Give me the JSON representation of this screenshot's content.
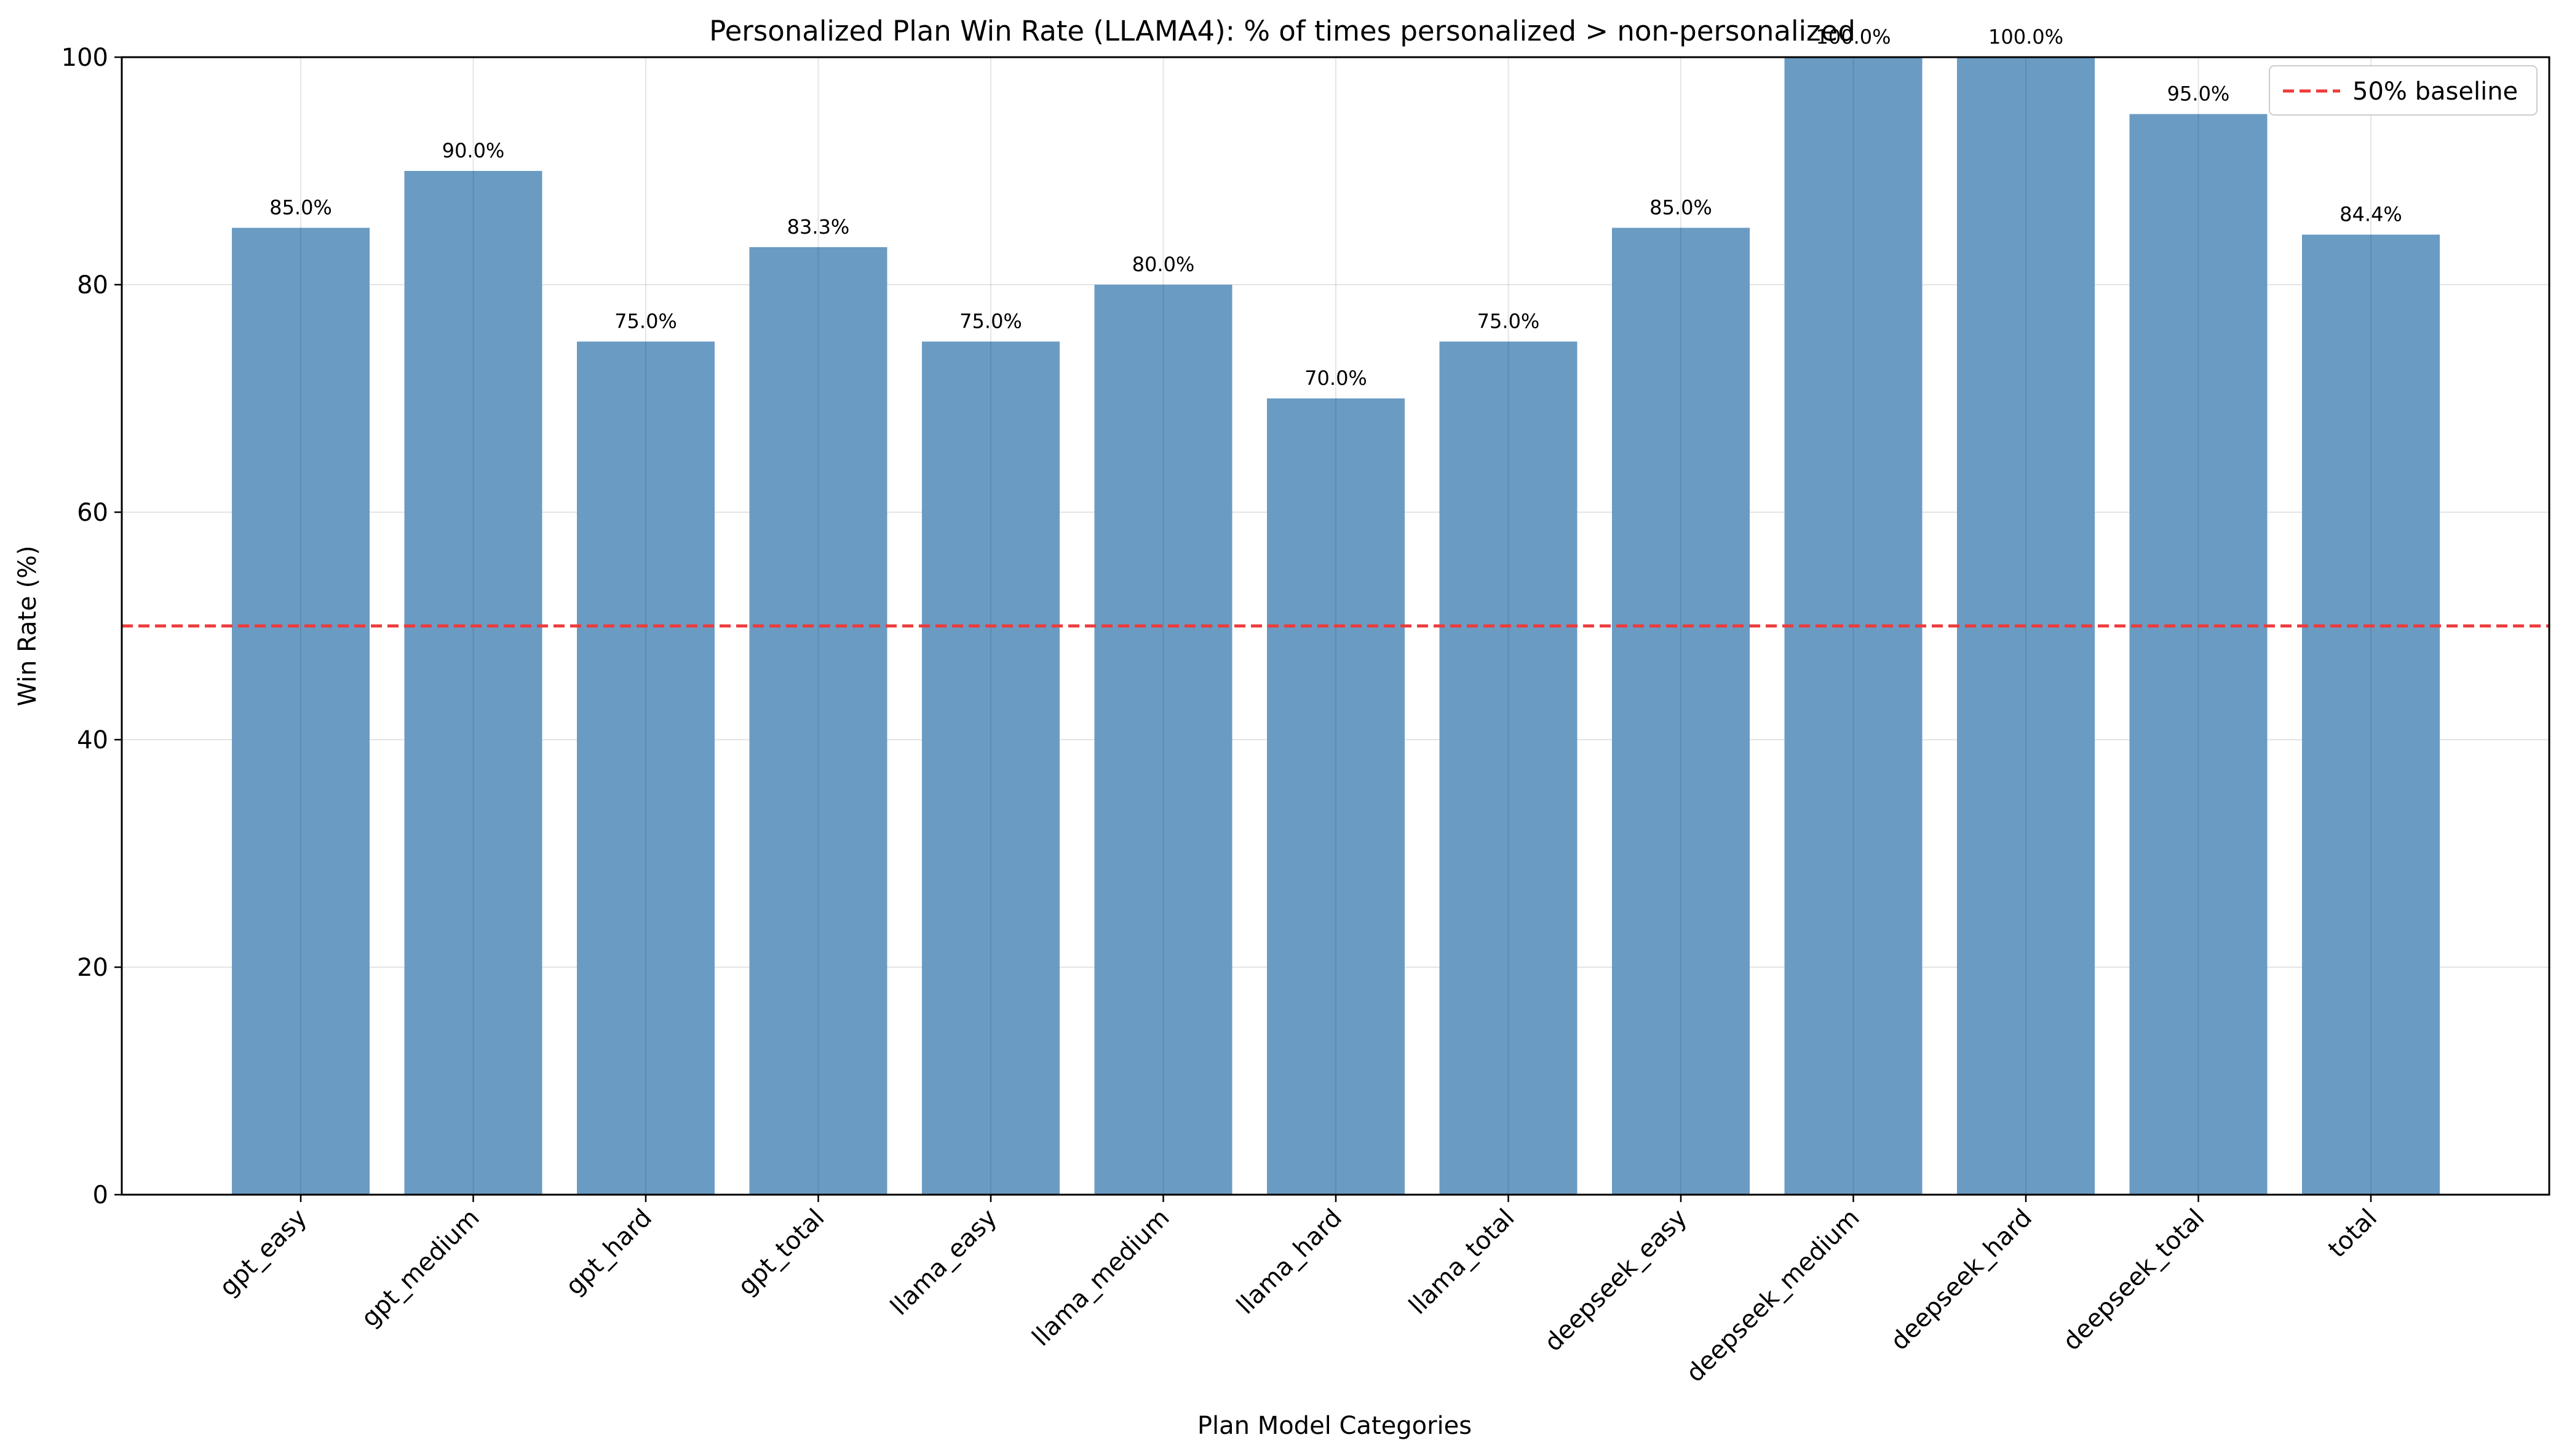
{
  "chart_data": {
    "type": "bar",
    "title": "Personalized Plan Win Rate (LLAMA4): % of times personalized > non-personalized",
    "xlabel": "Plan Model Categories",
    "ylabel": "Win Rate (%)",
    "ylim": [
      0,
      100
    ],
    "yticks": [
      "0",
      "20",
      "40",
      "60",
      "80",
      "100"
    ],
    "grid": true,
    "legend_position": "top-right",
    "categories": [
      "gpt_easy",
      "gpt_medium",
      "gpt_hard",
      "gpt_total",
      "llama_easy",
      "llama_medium",
      "llama_hard",
      "llama_total",
      "deepseek_easy",
      "deepseek_medium",
      "deepseek_hard",
      "deepseek_total",
      "total"
    ],
    "series": [
      {
        "values": [
          85.0,
          90.0,
          75.0,
          83.3,
          75.0,
          80.0,
          70.0,
          75.0,
          85.0,
          100.0,
          100.0,
          95.0,
          84.4
        ],
        "labels": [
          "85.0%",
          "90.0%",
          "75.0%",
          "83.3%",
          "75.0%",
          "80.0%",
          "70.0%",
          "75.0%",
          "85.0%",
          "100.0%",
          "100.0%",
          "95.0%",
          "84.4%"
        ],
        "color": "#6a9bc3"
      }
    ],
    "baseline": {
      "value": 50,
      "label": "50% baseline",
      "color": "#ee3b3b"
    }
  }
}
